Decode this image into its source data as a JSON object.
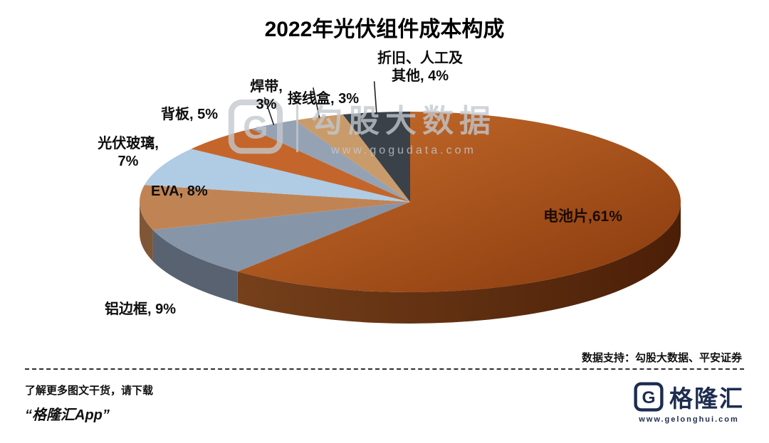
{
  "chart_data": {
    "type": "pie",
    "style": "3d-pie",
    "title": "2022年光伏组件成本构成",
    "start_angle_deg": -90,
    "direction": "clockwise",
    "slices": [
      {
        "name": "电池片",
        "value": 61,
        "gradient": [
          "#c96f2e",
          "#88390d"
        ],
        "label": "电池片,61%"
      },
      {
        "name": "铝边框",
        "value": 9,
        "color": "#8795a9",
        "label": "铝边框, 9%"
      },
      {
        "name": "EVA",
        "value": 8,
        "color": "#c08454",
        "label": "EVA, 8%"
      },
      {
        "name": "光伏玻璃",
        "value": 7,
        "color": "#b0cbe4",
        "label": "光伏玻璃,\n7%"
      },
      {
        "name": "背板",
        "value": 5,
        "color": "#c4662b",
        "label": "背板, 5%"
      },
      {
        "name": "焊带",
        "value": 3,
        "color": "#95a2b3",
        "label": "焊带,\n3%",
        "leader": true
      },
      {
        "name": "接线盒",
        "value": 3,
        "color": "#c99b6b",
        "label": "接线盒, 3%",
        "leader": true
      },
      {
        "name": "折旧、人工及其他",
        "value": 4,
        "color": "#3a4149",
        "label": "折旧、人工及\n其他, 4%",
        "leader": true
      }
    ]
  },
  "watermark": {
    "logo_letter": "G",
    "brand": "勾股大数据",
    "url": "www.gogudata.com"
  },
  "source_note": "数据支持：勾股大数据、平安证券",
  "footer": {
    "line1": "了解更多图文干货，请下载",
    "line2": "“格隆汇App”",
    "logo_letter": "G",
    "brand": "格隆汇",
    "brand_url": "www.gelonghui.com"
  }
}
